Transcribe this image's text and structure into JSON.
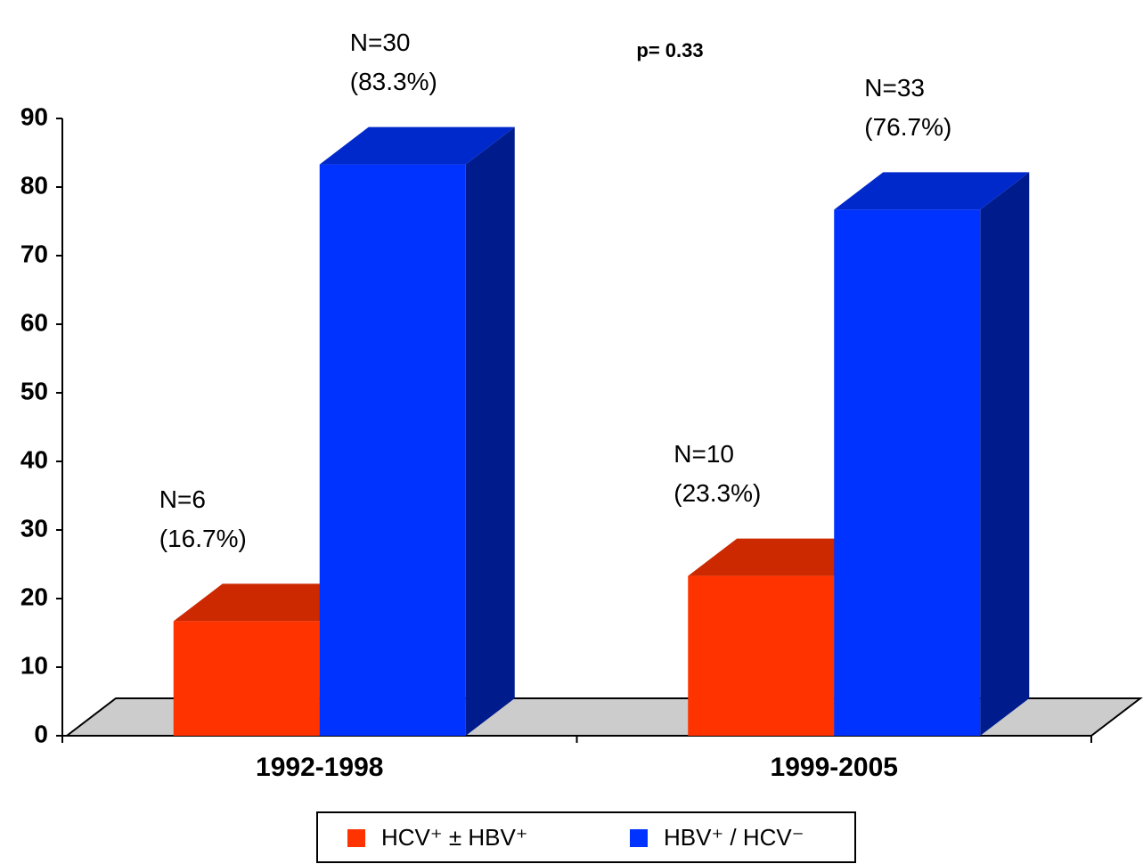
{
  "chart_data": {
    "type": "bar3d",
    "annotation": "p= 0.33",
    "categories": [
      "1992-1998",
      "1999-2005"
    ],
    "series": [
      {
        "name": "HCV⁺ ± HBV⁺",
        "color": "#ff3300",
        "values": [
          16.7,
          23.3
        ],
        "value_labels": [
          [
            "N=6",
            "(16.7%)"
          ],
          [
            "N=10",
            "(23.3%)"
          ]
        ]
      },
      {
        "name": "HBV⁺ / HCV⁻",
        "color": "#0033ff",
        "values": [
          83.3,
          76.7
        ],
        "value_labels": [
          [
            "N=30",
            "(83.3%)"
          ],
          [
            "N=33",
            "(76.7%)"
          ]
        ]
      }
    ],
    "ylim": [
      0,
      90
    ],
    "yticks": [
      0,
      10,
      20,
      30,
      40,
      50,
      60,
      70,
      80,
      90
    ],
    "legend": "bottom"
  }
}
